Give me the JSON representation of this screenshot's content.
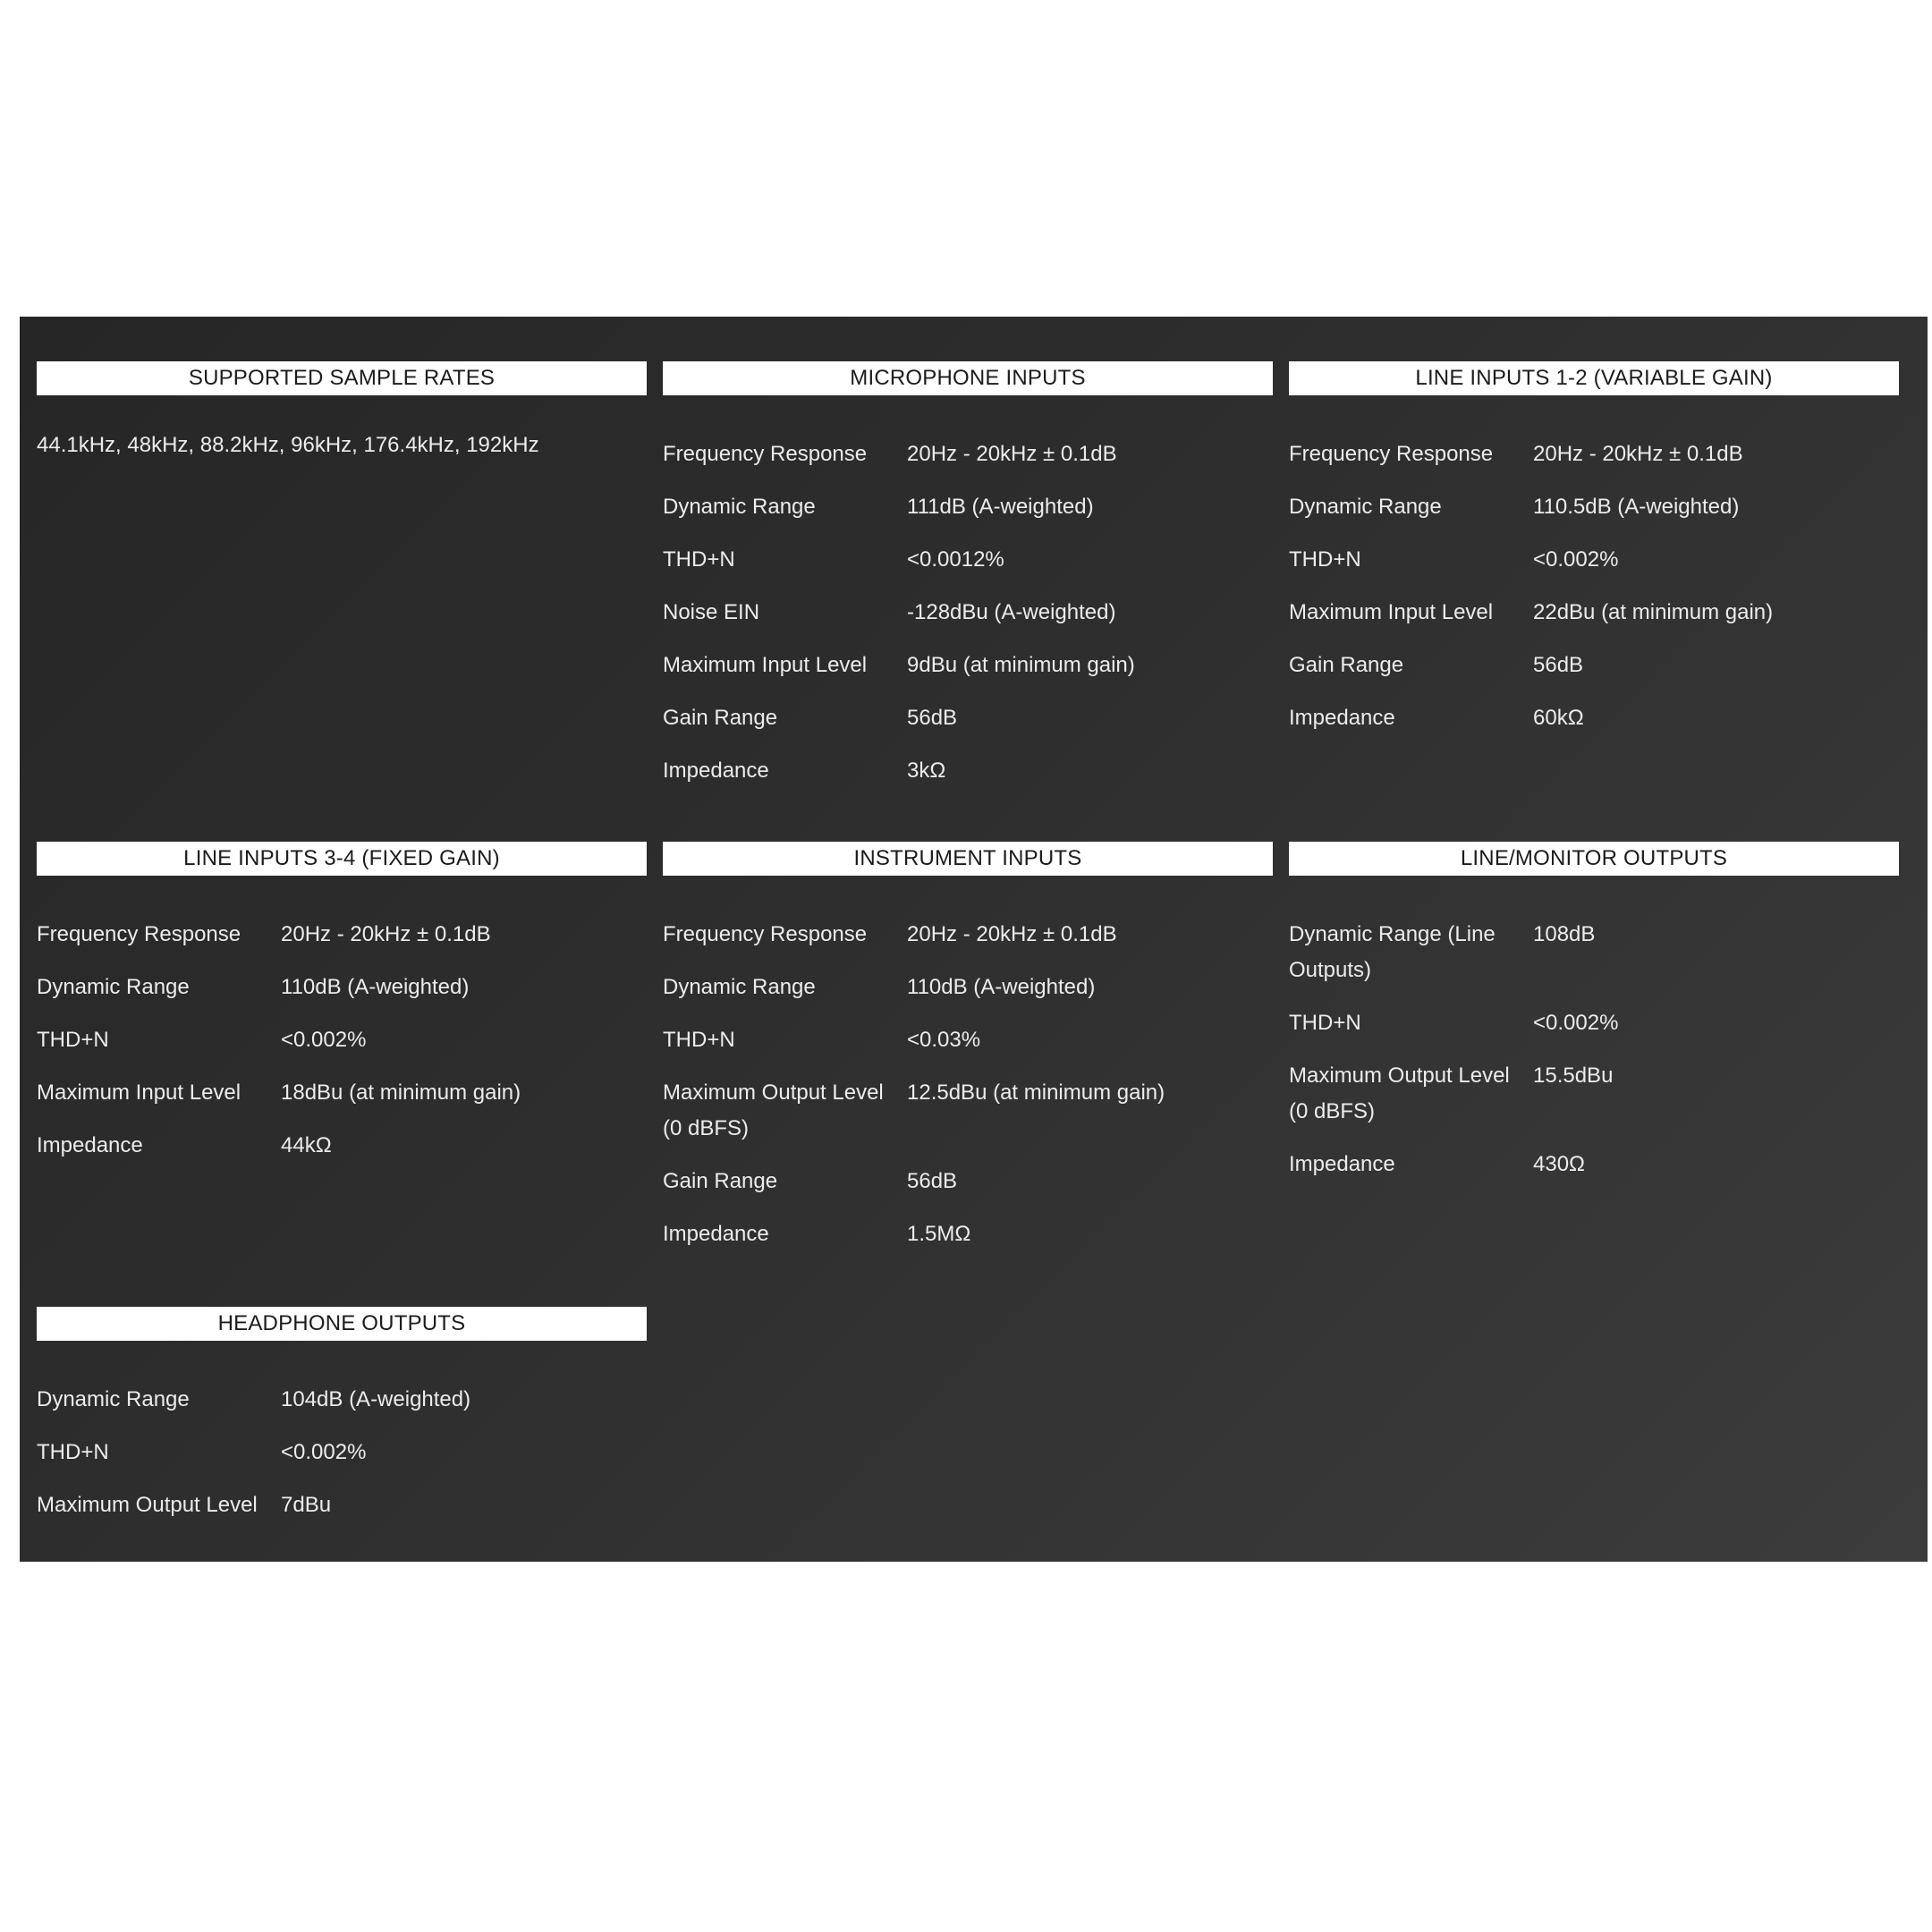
{
  "sections": [
    {
      "title": "SUPPORTED SAMPLE RATES",
      "text": "44.1kHz, 48kHz, 88.2kHz, 96kHz, 176.4kHz, 192kHz"
    },
    {
      "title": "MICROPHONE INPUTS",
      "rows": [
        {
          "label": "Frequency Response",
          "value": "20Hz - 20kHz ± 0.1dB"
        },
        {
          "label": "Dynamic Range",
          "value": "111dB (A-weighted)"
        },
        {
          "label": "THD+N",
          "value": "<0.0012%"
        },
        {
          "label": "Noise EIN",
          "value": "-128dBu (A-weighted)"
        },
        {
          "label": "Maximum Input Level",
          "value": "9dBu (at minimum gain)"
        },
        {
          "label": "Gain Range",
          "value": "56dB"
        },
        {
          "label": "Impedance",
          "value": "3kΩ"
        }
      ]
    },
    {
      "title": "LINE INPUTS 1-2 (VARIABLE GAIN)",
      "rows": [
        {
          "label": "Frequency Response",
          "value": "20Hz - 20kHz ± 0.1dB"
        },
        {
          "label": "Dynamic Range",
          "value": "110.5dB (A-weighted)"
        },
        {
          "label": "THD+N",
          "value": "<0.002%"
        },
        {
          "label": "Maximum Input Level",
          "value": "22dBu (at minimum gain)"
        },
        {
          "label": "Gain Range",
          "value": "56dB"
        },
        {
          "label": "Impedance",
          "value": "60kΩ"
        }
      ]
    },
    {
      "title": "LINE INPUTS 3-4 (FIXED GAIN)",
      "rows": [
        {
          "label": "Frequency Response",
          "value": "20Hz - 20kHz ± 0.1dB"
        },
        {
          "label": "Dynamic Range",
          "value": "110dB (A-weighted)"
        },
        {
          "label": "THD+N",
          "value": "<0.002%"
        },
        {
          "label": "Maximum Input Level",
          "value": "18dBu (at minimum gain)"
        },
        {
          "label": "Impedance",
          "value": "44kΩ"
        }
      ]
    },
    {
      "title": "INSTRUMENT INPUTS",
      "rows": [
        {
          "label": "Frequency Response",
          "value": "20Hz - 20kHz ± 0.1dB"
        },
        {
          "label": "Dynamic Range",
          "value": "110dB (A-weighted)"
        },
        {
          "label": "THD+N",
          "value": "<0.03%"
        },
        {
          "label": "Maximum Output Level (0 dBFS)",
          "value": "12.5dBu (at minimum gain)"
        },
        {
          "label": "Gain Range",
          "value": "56dB"
        },
        {
          "label": "Impedance",
          "value": "1.5MΩ"
        }
      ]
    },
    {
      "title": "LINE/MONITOR OUTPUTS",
      "rows": [
        {
          "label": "Dynamic Range (Line Outputs)",
          "value": "108dB"
        },
        {
          "label": "THD+N",
          "value": "<0.002%"
        },
        {
          "label": "Maximum Output Level (0 dBFS)",
          "value": "15.5dBu"
        },
        {
          "label": "Impedance",
          "value": "430Ω"
        }
      ]
    },
    {
      "title": "HEADPHONE OUTPUTS",
      "rows": [
        {
          "label": "Dynamic Range",
          "value": "104dB (A-weighted)"
        },
        {
          "label": "THD+N",
          "value": "<0.002%"
        },
        {
          "label": "Maximum Output Level",
          "value": "7dBu"
        }
      ]
    }
  ]
}
